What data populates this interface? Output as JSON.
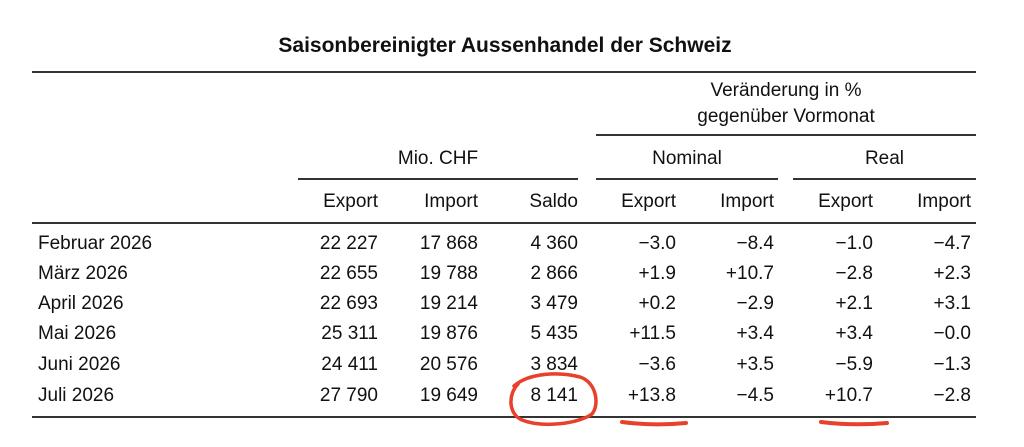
{
  "title": "Saisonbereinigter Aussenhandel der Schweiz",
  "headers": {
    "change_line1": "Veränderung in %",
    "change_line2": "gegenüber Vormonat",
    "mio_chf": "Mio. CHF",
    "nominal": "Nominal",
    "real": "Real",
    "columns": [
      "Export",
      "Import",
      "Saldo",
      "Export",
      "Import",
      "Export",
      "Import"
    ]
  },
  "rows": [
    {
      "month": "Februar 2026",
      "values": [
        "22 227",
        "17 868",
        "4 360",
        "−3.0",
        "−8.4",
        "−1.0",
        "−4.7"
      ]
    },
    {
      "month": "März 2026",
      "values": [
        "22 655",
        "19 788",
        "2 866",
        "+1.9",
        "+10.7",
        "−2.8",
        "+2.3"
      ]
    },
    {
      "month": "April 2026",
      "values": [
        "22 693",
        "19 214",
        "3 479",
        "+0.2",
        "−2.9",
        "+2.1",
        "+3.1"
      ]
    },
    {
      "month": "Mai 2026",
      "values": [
        "25 311",
        "19 876",
        "5 435",
        "+11.5",
        "+3.4",
        "+3.4",
        "−0.0"
      ]
    },
    {
      "month": "Juni 2026",
      "values": [
        "24 411",
        "20 576",
        "3 834",
        "−3.6",
        "+3.5",
        "−5.9",
        "−1.3"
      ]
    },
    {
      "month": "Juli 2026",
      "values": [
        "27 790",
        "19 649",
        "8 141",
        "+13.8",
        "−4.5",
        "+10.7",
        "−2.8"
      ]
    }
  ],
  "annotation_color": "#e8402a"
}
